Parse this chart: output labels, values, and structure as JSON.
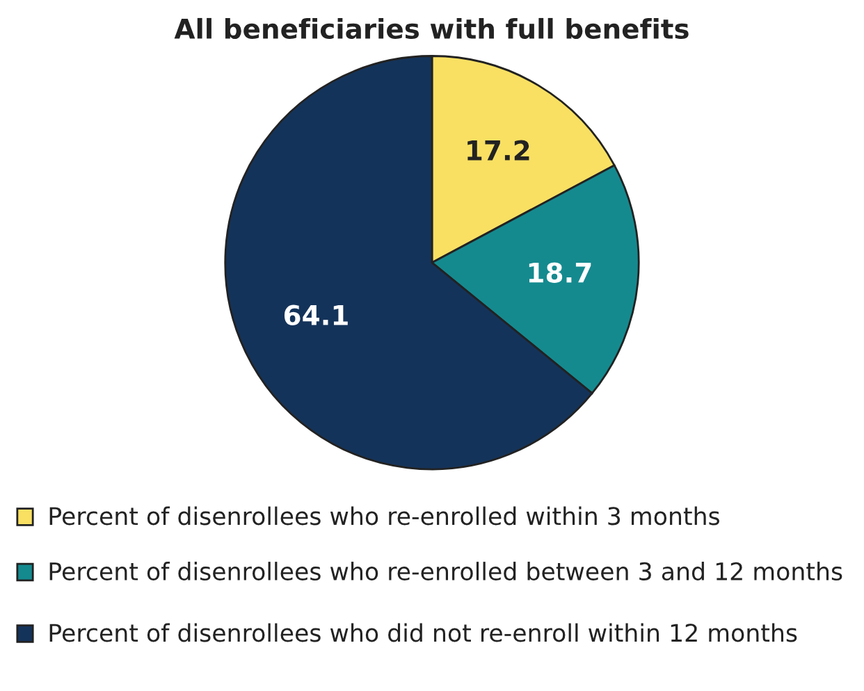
{
  "chart_data": {
    "type": "pie",
    "title": "All beneficiaries with full benefits",
    "categories": [
      "Percent of disenrollees who re-enrolled within 3 months",
      "Percent of disenrollees who re-enrolled between 3 and 12 months",
      "Percent of disenrollees who did not re-enroll within 12 months"
    ],
    "values": [
      17.2,
      18.7,
      64.1
    ],
    "colors": [
      "#f9e062",
      "#148a8f",
      "#14335a"
    ],
    "data_labels": true,
    "legend": "bottom"
  }
}
